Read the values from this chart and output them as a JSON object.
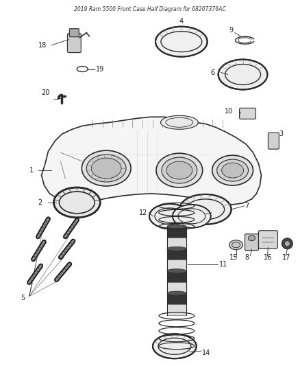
{
  "title": "2019 Ram 5500 Front Case Half Diagram for 68207376AC",
  "bg_color": "#ffffff",
  "line_color": "#2a2a2a",
  "text_color": "#1a1a1a",
  "label_fontsize": 7.0,
  "lw": 0.9
}
